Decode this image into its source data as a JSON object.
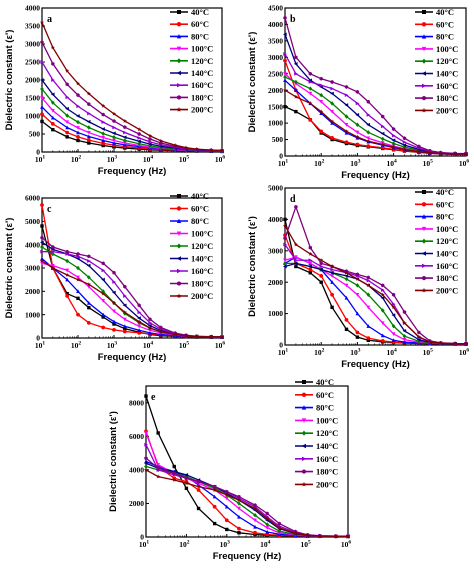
{
  "chart_data": [
    {
      "type": "line",
      "panel_label": "a",
      "xlabel": "Frequency (Hz)",
      "ylabel": "Dielectric constant (ε')",
      "xscale": "log",
      "xlim": [
        10,
        1000000
      ],
      "ylim": [
        0,
        4000
      ],
      "yticks": [
        0,
        500,
        1000,
        1500,
        2000,
        2500,
        3000,
        3500,
        4000
      ],
      "legend_position": "right",
      "x": [
        10,
        20,
        50,
        100,
        200,
        500,
        1000,
        2000,
        5000,
        10000,
        20000,
        50000,
        100000,
        200000,
        500000,
        1000000
      ],
      "series": [
        {
          "name": "40°C",
          "values": [
            850,
            620,
            420,
            320,
            250,
            180,
            140,
            110,
            80,
            60,
            50,
            40,
            30,
            25,
            20,
            15
          ]
        },
        {
          "name": "60°C",
          "values": [
            1050,
            780,
            540,
            420,
            330,
            240,
            190,
            150,
            110,
            80,
            65,
            50,
            40,
            30,
            25,
            20
          ]
        },
        {
          "name": "80°C",
          "values": [
            1250,
            950,
            680,
            540,
            430,
            320,
            250,
            200,
            150,
            110,
            85,
            60,
            45,
            35,
            28,
            22
          ]
        },
        {
          "name": "100°C",
          "values": [
            1500,
            1150,
            830,
            670,
            540,
            400,
            320,
            250,
            180,
            130,
            100,
            70,
            50,
            40,
            30,
            25
          ]
        },
        {
          "name": "120°C",
          "values": [
            1750,
            1370,
            1010,
            830,
            680,
            510,
            410,
            320,
            230,
            170,
            125,
            85,
            60,
            45,
            35,
            28
          ]
        },
        {
          "name": "140°C",
          "values": [
            2000,
            1600,
            1200,
            1000,
            840,
            640,
            520,
            410,
            300,
            220,
            160,
            105,
            70,
            50,
            38,
            30
          ]
        },
        {
          "name": "160°C",
          "values": [
            2500,
            2000,
            1520,
            1270,
            1070,
            830,
            680,
            540,
            390,
            280,
            200,
            130,
            85,
            60,
            45,
            35
          ]
        },
        {
          "name": "180°C",
          "values": [
            3050,
            2450,
            1880,
            1580,
            1330,
            1040,
            860,
            690,
            500,
            360,
            250,
            160,
            100,
            70,
            50,
            40
          ]
        },
        {
          "name": "200°C",
          "values": [
            3600,
            2900,
            2250,
            1900,
            1620,
            1280,
            1060,
            860,
            630,
            450,
            310,
            190,
            120,
            80,
            55,
            45
          ]
        }
      ]
    },
    {
      "type": "line",
      "panel_label": "b",
      "xlabel": "Frequency (Hz)",
      "ylabel": "Dielectric constant (ε')",
      "xscale": "log",
      "xlim": [
        10,
        1000000
      ],
      "ylim": [
        0,
        4500
      ],
      "yticks": [
        0,
        500,
        1000,
        1500,
        2000,
        2500,
        3000,
        3500,
        4000,
        4500
      ],
      "legend_position": "right",
      "x": [
        10,
        20,
        50,
        100,
        200,
        500,
        1000,
        2000,
        5000,
        10000,
        20000,
        50000,
        100000,
        200000,
        500000,
        1000000
      ],
      "series": [
        {
          "name": "40°C",
          "values": [
            1500,
            1350,
            1100,
            700,
            500,
            380,
            320,
            280,
            230,
            190,
            150,
            110,
            80,
            60,
            50,
            45
          ]
        },
        {
          "name": "60°C",
          "values": [
            2900,
            2000,
            1100,
            750,
            550,
            420,
            350,
            300,
            250,
            200,
            160,
            115,
            85,
            65,
            55,
            50
          ]
        },
        {
          "name": "80°C",
          "values": [
            2300,
            2000,
            1600,
            1300,
            1000,
            700,
            550,
            430,
            330,
            250,
            190,
            130,
            90,
            70,
            55,
            50
          ]
        },
        {
          "name": "100°C",
          "values": [
            2500,
            2200,
            1900,
            1650,
            1350,
            950,
            720,
            540,
            400,
            300,
            220,
            150,
            100,
            75,
            60,
            55
          ]
        },
        {
          "name": "120°C",
          "values": [
            2400,
            2250,
            2050,
            1850,
            1600,
            1200,
            950,
            720,
            520,
            380,
            270,
            175,
            115,
            80,
            65,
            60
          ]
        },
        {
          "name": "140°C",
          "values": [
            3700,
            2800,
            2300,
            2100,
            1900,
            1550,
            1250,
            950,
            680,
            480,
            330,
            200,
            125,
            85,
            70,
            65
          ]
        },
        {
          "name": "160°C",
          "values": [
            3100,
            2500,
            2250,
            2150,
            2050,
            1850,
            1600,
            1250,
            900,
            620,
            420,
            240,
            140,
            95,
            75,
            70
          ]
        },
        {
          "name": "180°C",
          "values": [
            4200,
            3000,
            2500,
            2350,
            2250,
            2100,
            1950,
            1650,
            1200,
            820,
            540,
            290,
            160,
            105,
            80,
            75
          ]
        },
        {
          "name": "200°C",
          "values": [
            2000,
            1800,
            1600,
            1350,
            1050,
            750,
            580,
            450,
            350,
            270,
            200,
            135,
            95,
            75,
            60,
            55
          ]
        }
      ]
    },
    {
      "type": "line",
      "panel_label": "c",
      "xlabel": "Frequency (Hz)",
      "ylabel": "Dielectric constant (ε')",
      "xscale": "log",
      "xlim": [
        10,
        1000000
      ],
      "ylim": [
        0,
        6000
      ],
      "yticks": [
        0,
        1000,
        2000,
        3000,
        4000,
        5000,
        6000
      ],
      "legend_position": "right",
      "x": [
        10,
        20,
        50,
        100,
        200,
        500,
        1000,
        2000,
        5000,
        10000,
        20000,
        50000,
        100000,
        200000,
        500000,
        1000000
      ],
      "series": [
        {
          "name": "40°C",
          "values": [
            4800,
            3000,
            1900,
            1700,
            1300,
            900,
            600,
            400,
            250,
            150,
            100,
            70,
            50,
            40,
            35,
            30
          ]
        },
        {
          "name": "60°C",
          "values": [
            5700,
            3000,
            1800,
            1000,
            650,
            450,
            350,
            280,
            220,
            170,
            130,
            90,
            60,
            45,
            40,
            35
          ]
        },
        {
          "name": "80°C",
          "values": [
            3400,
            3000,
            2500,
            2000,
            1500,
            1000,
            700,
            500,
            330,
            220,
            150,
            100,
            70,
            50,
            40,
            35
          ]
        },
        {
          "name": "100°C",
          "values": [
            3200,
            3100,
            2900,
            2600,
            2200,
            1600,
            1150,
            800,
            500,
            330,
            220,
            130,
            80,
            55,
            45,
            40
          ]
        },
        {
          "name": "120°C",
          "values": [
            3900,
            3600,
            3300,
            3000,
            2600,
            2000,
            1500,
            1050,
            650,
            420,
            270,
            150,
            90,
            60,
            48,
            42
          ]
        },
        {
          "name": "140°C",
          "values": [
            4100,
            3800,
            3600,
            3400,
            3100,
            2500,
            1950,
            1400,
            850,
            530,
            320,
            170,
            100,
            65,
            50,
            45
          ]
        },
        {
          "name": "160°C",
          "values": [
            3700,
            3700,
            3600,
            3500,
            3300,
            2900,
            2400,
            1800,
            1100,
            650,
            380,
            190,
            110,
            70,
            55,
            48
          ]
        },
        {
          "name": "180°C",
          "values": [
            4300,
            3900,
            3700,
            3600,
            3500,
            3200,
            2800,
            2200,
            1400,
            800,
            450,
            210,
            120,
            75,
            58,
            50
          ]
        },
        {
          "name": "200°C",
          "values": [
            3300,
            3000,
            2700,
            2500,
            2300,
            1900,
            1500,
            1100,
            700,
            430,
            270,
            150,
            90,
            60,
            48,
            42
          ]
        }
      ]
    },
    {
      "type": "line",
      "panel_label": "d",
      "xlabel": "Frequency (Hz)",
      "ylabel": "Dielectric constant (ε')",
      "xscale": "log",
      "xlim": [
        10,
        1000000
      ],
      "ylim": [
        0,
        5000
      ],
      "yticks": [
        0,
        1000,
        2000,
        3000,
        4000,
        5000
      ],
      "legend_position": "right",
      "x": [
        10,
        20,
        50,
        100,
        200,
        500,
        1000,
        2000,
        5000,
        10000,
        20000,
        50000,
        100000,
        200000,
        500000,
        1000000
      ],
      "series": [
        {
          "name": "40°C",
          "values": [
            4000,
            2500,
            2300,
            2000,
            1200,
            500,
            250,
            150,
            100,
            80,
            60,
            50,
            40,
            35,
            30,
            28
          ]
        },
        {
          "name": "60°C",
          "values": [
            3500,
            2600,
            2400,
            2200,
            1600,
            800,
            400,
            220,
            130,
            90,
            70,
            55,
            45,
            38,
            32,
            30
          ]
        },
        {
          "name": "80°C",
          "values": [
            2600,
            2800,
            2600,
            2400,
            2000,
            1500,
            1000,
            600,
            300,
            150,
            90,
            65,
            50,
            40,
            35,
            32
          ]
        },
        {
          "name": "100°C",
          "values": [
            2700,
            2800,
            2600,
            2400,
            2200,
            1900,
            1600,
            1200,
            700,
            350,
            170,
            90,
            60,
            45,
            38,
            34
          ]
        },
        {
          "name": "120°C",
          "values": [
            2600,
            2600,
            2500,
            2400,
            2300,
            2100,
            1900,
            1600,
            1100,
            600,
            280,
            120,
            70,
            50,
            40,
            36
          ]
        },
        {
          "name": "140°C",
          "values": [
            2500,
            2600,
            2500,
            2400,
            2300,
            2200,
            2100,
            1900,
            1500,
            950,
            450,
            170,
            85,
            55,
            42,
            38
          ]
        },
        {
          "name": "160°C",
          "values": [
            3200,
            2700,
            2700,
            2500,
            2400,
            2300,
            2200,
            2050,
            1750,
            1300,
            700,
            250,
            100,
            60,
            45,
            40
          ]
        },
        {
          "name": "180°C",
          "values": [
            3400,
            4400,
            3100,
            2600,
            2500,
            2350,
            2250,
            2150,
            1900,
            1600,
            1050,
            400,
            130,
            70,
            48,
            42
          ]
        },
        {
          "name": "200°C",
          "values": [
            3800,
            3200,
            2900,
            2700,
            2500,
            2300,
            2100,
            1900,
            1600,
            1200,
            700,
            260,
            100,
            60,
            45,
            40
          ]
        }
      ]
    },
    {
      "type": "line",
      "panel_label": "e",
      "xlabel": "Frequency (Hz)",
      "ylabel": "Dielectric constant (ε')",
      "xscale": "log",
      "xlim": [
        10,
        1000000
      ],
      "ylim": [
        0,
        9000
      ],
      "yticks": [
        0,
        2000,
        4000,
        6000,
        8000
      ],
      "legend_position": "right",
      "x": [
        10,
        20,
        50,
        100,
        200,
        500,
        1000,
        2000,
        5000,
        10000,
        20000,
        50000,
        100000,
        200000,
        500000,
        1000000
      ],
      "series": [
        {
          "name": "40°C",
          "values": [
            8400,
            6200,
            4200,
            2900,
            1700,
            800,
            450,
            250,
            150,
            100,
            80,
            60,
            50,
            40,
            35,
            30
          ]
        },
        {
          "name": "60°C",
          "values": [
            6300,
            4200,
            3500,
            3300,
            2800,
            1800,
            1000,
            500,
            250,
            150,
            100,
            70,
            55,
            45,
            38,
            34
          ]
        },
        {
          "name": "80°C",
          "values": [
            4500,
            4200,
            3900,
            3600,
            3100,
            2400,
            1800,
            1200,
            600,
            300,
            160,
            90,
            60,
            48,
            40,
            36
          ]
        },
        {
          "name": "100°C",
          "values": [
            6200,
            4300,
            3800,
            3500,
            3200,
            2800,
            2300,
            1700,
            1000,
            550,
            250,
            120,
            70,
            52,
            42,
            38
          ]
        },
        {
          "name": "120°C",
          "values": [
            4200,
            4000,
            3800,
            3600,
            3300,
            2900,
            2500,
            2000,
            1300,
            750,
            350,
            150,
            80,
            55,
            44,
            40
          ]
        },
        {
          "name": "140°C",
          "values": [
            4400,
            4100,
            3900,
            3700,
            3400,
            3000,
            2600,
            2200,
            1600,
            1000,
            500,
            200,
            95,
            60,
            46,
            42
          ]
        },
        {
          "name": "160°C",
          "values": [
            5500,
            4000,
            3700,
            3500,
            3300,
            3000,
            2700,
            2300,
            1800,
            1200,
            650,
            260,
            110,
            65,
            48,
            44
          ]
        },
        {
          "name": "180°C",
          "values": [
            4700,
            4100,
            3800,
            3500,
            3300,
            3000,
            2700,
            2400,
            1900,
            1400,
            800,
            320,
            130,
            70,
            50,
            46
          ]
        },
        {
          "name": "200°C",
          "values": [
            4000,
            3600,
            3400,
            3200,
            3000,
            2800,
            2500,
            2200,
            1700,
            1100,
            550,
            220,
            100,
            62,
            47,
            43
          ]
        }
      ]
    }
  ],
  "series_colors": [
    "#000000",
    "#ff0000",
    "#0000ff",
    "#ff00ff",
    "#008000",
    "#000080",
    "#9400d3",
    "#800080",
    "#800000"
  ]
}
